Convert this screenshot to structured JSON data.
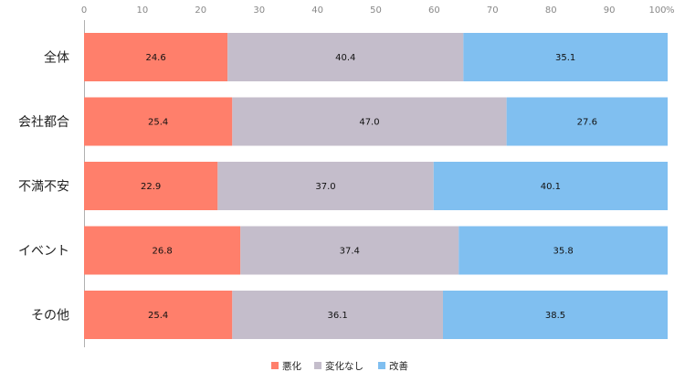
{
  "chart_data": {
    "type": "bar",
    "orientation": "horizontal",
    "stacked": true,
    "categories": [
      "全体",
      "会社都合",
      "不満不安",
      "イベント",
      "その他"
    ],
    "series": [
      {
        "name": "悪化",
        "color": "#ff7f6b",
        "values": [
          24.6,
          25.4,
          22.9,
          26.8,
          25.4
        ]
      },
      {
        "name": "変化なし",
        "color": "#c4bdcb",
        "values": [
          40.4,
          47.0,
          37.0,
          37.4,
          36.1
        ]
      },
      {
        "name": "改善",
        "color": "#80bff0",
        "values": [
          35.1,
          27.6,
          40.1,
          35.8,
          38.5
        ]
      }
    ],
    "value_labels": [
      [
        "24.6",
        "40.4",
        "35.1"
      ],
      [
        "25.4",
        "47.0",
        "27.6"
      ],
      [
        "22.9",
        "37.0",
        "40.1"
      ],
      [
        "26.8",
        "37.4",
        "35.8"
      ],
      [
        "25.4",
        "36.1",
        "38.5"
      ]
    ],
    "x_ticks": [
      "0",
      "10",
      "20",
      "30",
      "40",
      "50",
      "60",
      "70",
      "80",
      "90",
      "100"
    ],
    "x_unit": "%",
    "xlim": [
      0,
      100
    ],
    "grid": false,
    "legend_position": "bottom"
  }
}
